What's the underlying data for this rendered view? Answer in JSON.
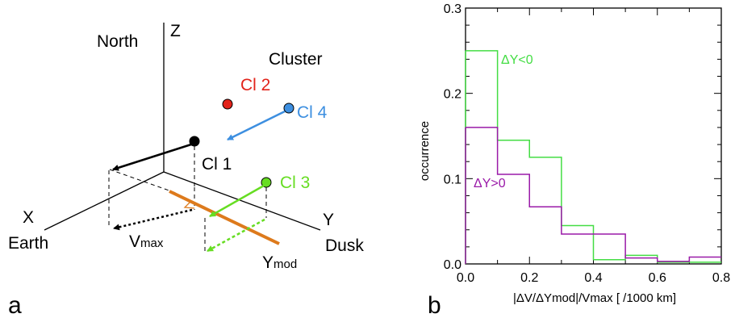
{
  "panel_a": {
    "label": "a",
    "axes": {
      "z": "Z",
      "x": "X",
      "y": "Y"
    },
    "directions": {
      "north": "North",
      "earth": "Earth",
      "dusk": "Dusk"
    },
    "mission": "Cluster",
    "spacecraft": [
      {
        "name": "Cl 1",
        "color": "#000000"
      },
      {
        "name": "Cl 2",
        "color": "#e2231a"
      },
      {
        "name": "Cl 3",
        "color": "#66dd22"
      },
      {
        "name": "Cl 4",
        "color": "#3d8fe0"
      }
    ],
    "vmax": {
      "base": "V",
      "sub": "max"
    },
    "ymod": {
      "base": "Y",
      "sub": "mod"
    },
    "colors": {
      "ymod_line": "#dd7a1c",
      "accent_cl3": "#66dd22",
      "accent_cl4": "#3d8fe0"
    }
  },
  "panel_b": {
    "label": "b",
    "chart_data": {
      "type": "histogram",
      "ylabel": "occurrence",
      "xlabel": "|ΔV/ΔYmod|/Vmax [ /1000 km]",
      "xlim": [
        0.0,
        0.8
      ],
      "ylim": [
        0.0,
        0.3
      ],
      "xticks": [
        "0.0",
        "0.2",
        "0.4",
        "0.6",
        "0.8"
      ],
      "yticks": [
        "0.0",
        "0.1",
        "0.2",
        "0.3"
      ],
      "bin_edges": [
        0.0,
        0.1,
        0.2,
        0.3,
        0.4,
        0.5,
        0.6,
        0.7,
        0.8
      ],
      "series": [
        {
          "name": "ΔY<0",
          "color": "#44dd44",
          "values": [
            0.25,
            0.145,
            0.125,
            0.045,
            0.005,
            0.01,
            0.002,
            0.002
          ]
        },
        {
          "name": "ΔY>0",
          "color": "#9a1aa8",
          "values": [
            0.16,
            0.105,
            0.067,
            0.035,
            0.035,
            0.007,
            0.003,
            0.008
          ]
        }
      ]
    }
  }
}
